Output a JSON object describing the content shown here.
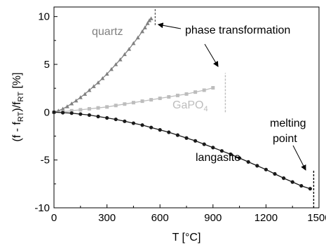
{
  "chart_data": {
    "type": "line",
    "xlabel": "T [°C]",
    "ylabel": {
      "prefix": "(f - f",
      "sub1": "RT",
      "mid": ")/f",
      "sub2": "RT",
      "suffix": " [%]"
    },
    "xlim": [
      0,
      1500
    ],
    "ylim": [
      -10,
      11
    ],
    "xticks": [
      0,
      300,
      600,
      900,
      1200,
      1500
    ],
    "yticks": [
      -10,
      -5,
      0,
      5,
      10
    ],
    "grid": false,
    "series": [
      {
        "name": "quartz",
        "color": "#808080",
        "marker": "triangle",
        "x": [
          0,
          25,
          50,
          75,
          100,
          125,
          150,
          175,
          200,
          225,
          250,
          275,
          300,
          325,
          350,
          375,
          400,
          425,
          450,
          475,
          500,
          515,
          530,
          540,
          550
        ],
        "y": [
          0,
          0.15,
          0.35,
          0.6,
          0.9,
          1.2,
          1.55,
          1.9,
          2.3,
          2.7,
          3.1,
          3.55,
          4.0,
          4.5,
          5.0,
          5.5,
          6.05,
          6.6,
          7.2,
          7.8,
          8.45,
          8.85,
          9.3,
          9.6,
          9.8
        ]
      },
      {
        "name": "GaPO4",
        "label": {
          "text": "GaPO",
          "sub": "4"
        },
        "color": "#bdbdbd",
        "marker": "square",
        "x": [
          0,
          50,
          100,
          150,
          200,
          250,
          300,
          350,
          400,
          450,
          500,
          550,
          600,
          650,
          700,
          750,
          800,
          850,
          900
        ],
        "y": [
          0,
          0.05,
          0.15,
          0.25,
          0.35,
          0.45,
          0.55,
          0.7,
          0.85,
          1.0,
          1.15,
          1.3,
          1.45,
          1.6,
          1.75,
          1.9,
          2.1,
          2.3,
          2.55
        ]
      },
      {
        "name": "langasite",
        "color": "#1a1a1a",
        "marker": "circle",
        "x": [
          0,
          50,
          100,
          150,
          200,
          250,
          300,
          350,
          400,
          450,
          500,
          550,
          600,
          650,
          700,
          750,
          800,
          850,
          900,
          950,
          1000,
          1050,
          1100,
          1150,
          1200,
          1250,
          1300,
          1350,
          1400,
          1450
        ],
        "y": [
          0,
          -0.05,
          -0.1,
          -0.2,
          -0.3,
          -0.45,
          -0.6,
          -0.75,
          -0.95,
          -1.15,
          -1.35,
          -1.6,
          -1.85,
          -2.1,
          -2.4,
          -2.7,
          -3.0,
          -3.35,
          -3.7,
          -4.05,
          -4.4,
          -4.8,
          -5.2,
          -5.6,
          -6.0,
          -6.45,
          -6.9,
          -7.3,
          -7.7,
          -8.0
        ]
      }
    ],
    "annotations": [
      {
        "name": "phase-transformation",
        "text": "phase transformation"
      },
      {
        "name": "melting-point",
        "lines": [
          "melting",
          "point"
        ]
      }
    ],
    "markers": {
      "quartz_transition": {
        "x": 573,
        "y_range": [
          9.1,
          10.8
        ]
      },
      "gapo4_transition": {
        "x": 970,
        "y_range": [
          0,
          4.1
        ]
      },
      "langasite_melting": {
        "x": 1470,
        "y_range": [
          -10,
          -6.1
        ]
      }
    }
  }
}
